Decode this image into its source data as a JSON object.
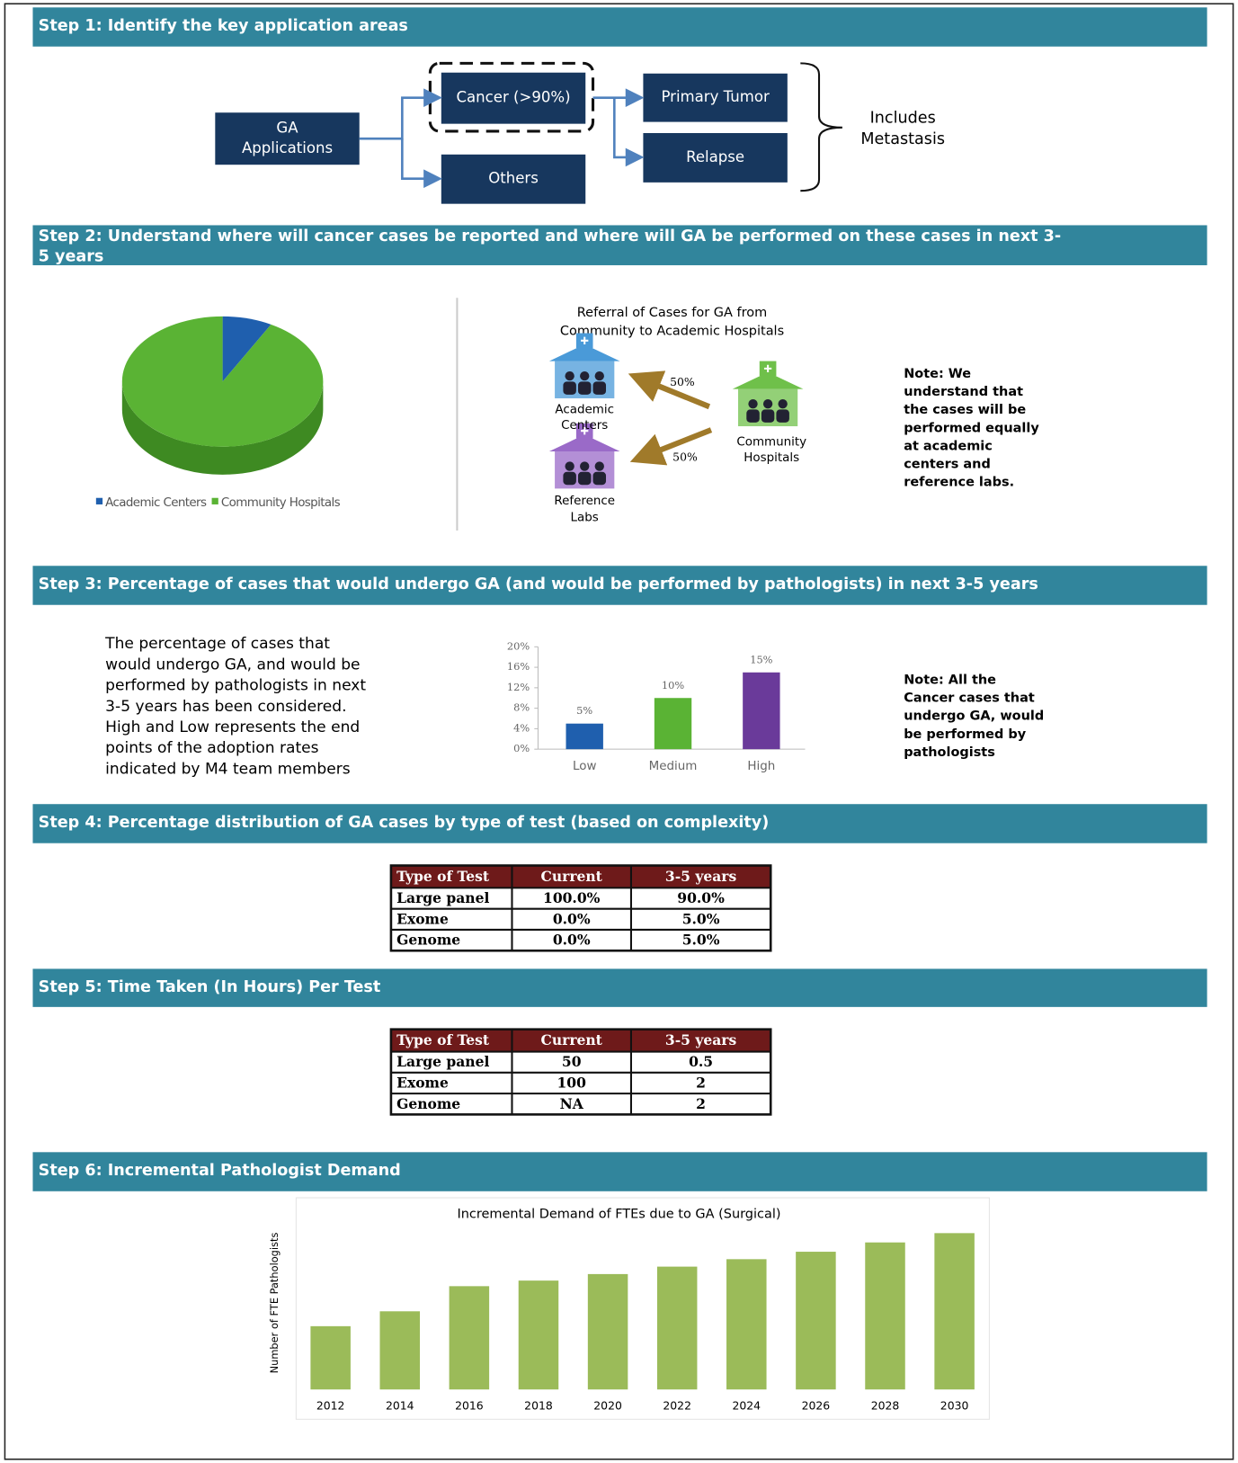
{
  "steps": [
    [
      "Step 1: Identify the key application areas"
    ],
    [
      "Step 2: Understand where will cancer cases be reported and where will GA be performed on these cases in next 3-",
      "5 years"
    ],
    [
      "Step 3: Percentage of cases that would undergo GA (and would be performed by pathologists) in next 3-5 years"
    ],
    [
      "Step 4: Percentage distribution of GA cases by type of test (based on complexity)"
    ],
    [
      "Step 5: Time Taken (In Hours) Per Test"
    ],
    [
      "Step 6: Incremental Pathologist Demand"
    ]
  ],
  "step1": {
    "nodes": [
      [
        "GA",
        "Applications"
      ],
      [
        "Cancer (>90%)"
      ],
      [
        "Others"
      ],
      [
        "Primary Tumor"
      ],
      [
        "Relapse"
      ]
    ],
    "brace_note": [
      "Includes",
      "Metastasis"
    ]
  },
  "referral": {
    "title": [
      "Referral of Cases for GA from",
      "Community to Academic Hospitals"
    ],
    "academic": [
      "Academic",
      "Centers"
    ],
    "community": [
      "Community",
      "Hospitals"
    ],
    "labs": [
      "Reference",
      "Labs"
    ],
    "share_academic": "50%",
    "share_labs": "50%"
  },
  "note2": [
    "Note: We",
    "understand that",
    "the cases will be",
    "performed equally",
    "at academic",
    "centers and",
    "reference labs."
  ],
  "step3_text": [
    "The percentage of cases that",
    "would undergo GA, and would be",
    "performed by pathologists in next",
    "3-5 years has been considered.",
    "High and Low represents the end",
    "points of the adoption rates",
    "indicated by M4 team members"
  ],
  "note3": [
    "Note: All the",
    "Cancer cases that",
    "undergo GA, would",
    "be performed by",
    "pathologists"
  ],
  "table4": {
    "header": [
      "Type of Test",
      "Current",
      "3-5 years"
    ],
    "rows": [
      [
        "Large panel",
        "100.0%",
        "90.0%"
      ],
      [
        "Exome",
        "0.0%",
        "5.0%"
      ],
      [
        "Genome",
        "0.0%",
        "5.0%"
      ]
    ]
  },
  "table5": {
    "header": [
      "Type of Test",
      "Current",
      "3-5 years"
    ],
    "rows": [
      [
        "Large panel",
        "50",
        "0.5"
      ],
      [
        "Exome",
        "100",
        "2"
      ],
      [
        "Genome",
        "NA",
        "2"
      ]
    ]
  },
  "chart_data": [
    {
      "type": "pie",
      "categories": [
        "Academic Centers",
        "Community Hospitals"
      ],
      "values": [
        8,
        92
      ],
      "colors": [
        "#1f5fae",
        "#5ab334"
      ],
      "legend": "bottom"
    },
    {
      "type": "bar",
      "categories": [
        "Low",
        "Medium",
        "High"
      ],
      "values": [
        5,
        10,
        15
      ],
      "value_labels": [
        "5%",
        "10%",
        "15%"
      ],
      "colors": [
        "#1f5fae",
        "#5ab334",
        "#6a3a9a"
      ],
      "ylim": [
        0,
        20
      ],
      "yticks": [
        {
          "value": 0,
          "label": "0%"
        },
        {
          "value": 4,
          "label": "4%"
        },
        {
          "value": 8,
          "label": "8%"
        },
        {
          "value": 12,
          "label": "12%"
        },
        {
          "value": 16,
          "label": "16%"
        },
        {
          "value": 20,
          "label": "20%"
        }
      ],
      "grid": false
    },
    {
      "type": "bar",
      "title": "Incremental Demand of FTEs due to GA (Surgical)",
      "y_label": "Number of FTE Pathologists",
      "categories": [
        "2012",
        "2014",
        "2016",
        "2018",
        "2020",
        "2022",
        "2024",
        "2026",
        "2028",
        "2030"
      ],
      "values": [
        68,
        84,
        111,
        117,
        124,
        132,
        140,
        148,
        158,
        168
      ],
      "color": "#9bbb59",
      "grid": false
    }
  ]
}
